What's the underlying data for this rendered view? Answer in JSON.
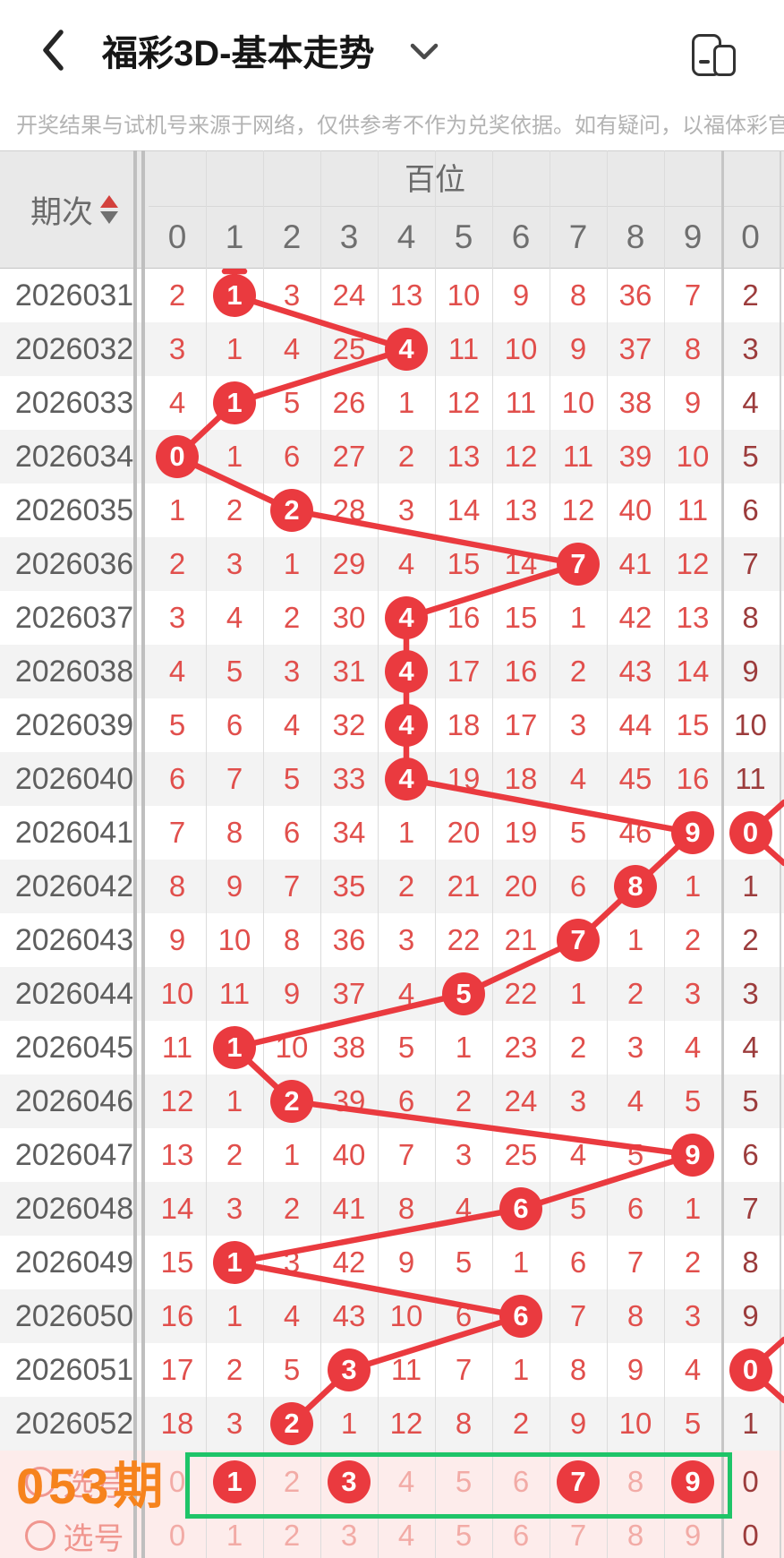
{
  "header": {
    "title": "福彩3D-基本走势",
    "back_icon": "chevron-left",
    "dropdown_icon": "chevron-down",
    "window_icon": "multi-window"
  },
  "disclaimer": "开奖结果与试机号来源于网络，仅供参考不作为兑奖依据。如有疑问，以福体彩官方数据",
  "table": {
    "period_header": "期次",
    "group_header": "百位",
    "digit_headers": [
      "0",
      "1",
      "2",
      "3",
      "4",
      "5",
      "6",
      "7",
      "8",
      "9"
    ],
    "next_group": {
      "digit_header": "0"
    },
    "rows": [
      {
        "period": "2026031",
        "cells": [
          "2",
          "1",
          "3",
          "24",
          "13",
          "10",
          "9",
          "8",
          "36",
          "7"
        ],
        "circled": 1,
        "next": "2",
        "next_circled": false
      },
      {
        "period": "2026032",
        "cells": [
          "3",
          "1",
          "4",
          "25",
          "4",
          "11",
          "10",
          "9",
          "37",
          "8"
        ],
        "circled": 4,
        "next": "3",
        "next_circled": false
      },
      {
        "period": "2026033",
        "cells": [
          "4",
          "1",
          "5",
          "26",
          "1",
          "12",
          "11",
          "10",
          "38",
          "9"
        ],
        "circled": 1,
        "next": "4",
        "next_circled": false
      },
      {
        "period": "2026034",
        "cells": [
          "0",
          "1",
          "6",
          "27",
          "2",
          "13",
          "12",
          "11",
          "39",
          "10"
        ],
        "circled": 0,
        "next": "5",
        "next_circled": false
      },
      {
        "period": "2026035",
        "cells": [
          "1",
          "2",
          "2",
          "28",
          "3",
          "14",
          "13",
          "12",
          "40",
          "11"
        ],
        "circled": 2,
        "next": "6",
        "next_circled": false
      },
      {
        "period": "2026036",
        "cells": [
          "2",
          "3",
          "1",
          "29",
          "4",
          "15",
          "14",
          "7",
          "41",
          "12"
        ],
        "circled": 7,
        "next": "7",
        "next_circled": false
      },
      {
        "period": "2026037",
        "cells": [
          "3",
          "4",
          "2",
          "30",
          "4",
          "16",
          "15",
          "1",
          "42",
          "13"
        ],
        "circled": 4,
        "next": "8",
        "next_circled": false
      },
      {
        "period": "2026038",
        "cells": [
          "4",
          "5",
          "3",
          "31",
          "4",
          "17",
          "16",
          "2",
          "43",
          "14"
        ],
        "circled": 4,
        "next": "9",
        "next_circled": false
      },
      {
        "period": "2026039",
        "cells": [
          "5",
          "6",
          "4",
          "32",
          "4",
          "18",
          "17",
          "3",
          "44",
          "15"
        ],
        "circled": 4,
        "next": "10",
        "next_circled": false
      },
      {
        "period": "2026040",
        "cells": [
          "6",
          "7",
          "5",
          "33",
          "4",
          "19",
          "18",
          "4",
          "45",
          "16"
        ],
        "circled": 4,
        "next": "11",
        "next_circled": false
      },
      {
        "period": "2026041",
        "cells": [
          "7",
          "8",
          "6",
          "34",
          "1",
          "20",
          "19",
          "5",
          "46",
          "9"
        ],
        "circled": 9,
        "next": "0",
        "next_circled": true
      },
      {
        "period": "2026042",
        "cells": [
          "8",
          "9",
          "7",
          "35",
          "2",
          "21",
          "20",
          "6",
          "8",
          "1"
        ],
        "circled": 8,
        "next": "1",
        "next_circled": false
      },
      {
        "period": "2026043",
        "cells": [
          "9",
          "10",
          "8",
          "36",
          "3",
          "22",
          "21",
          "7",
          "1",
          "2"
        ],
        "circled": 7,
        "next": "2",
        "next_circled": false
      },
      {
        "period": "2026044",
        "cells": [
          "10",
          "11",
          "9",
          "37",
          "4",
          "5",
          "22",
          "1",
          "2",
          "3"
        ],
        "circled": 5,
        "next": "3",
        "next_circled": false
      },
      {
        "period": "2026045",
        "cells": [
          "11",
          "1",
          "10",
          "38",
          "5",
          "1",
          "23",
          "2",
          "3",
          "4"
        ],
        "circled": 1,
        "next": "4",
        "next_circled": false
      },
      {
        "period": "2026046",
        "cells": [
          "12",
          "1",
          "2",
          "39",
          "6",
          "2",
          "24",
          "3",
          "4",
          "5"
        ],
        "circled": 2,
        "next": "5",
        "next_circled": false
      },
      {
        "period": "2026047",
        "cells": [
          "13",
          "2",
          "1",
          "40",
          "7",
          "3",
          "25",
          "4",
          "5",
          "9"
        ],
        "circled": 9,
        "next": "6",
        "next_circled": false
      },
      {
        "period": "2026048",
        "cells": [
          "14",
          "3",
          "2",
          "41",
          "8",
          "4",
          "6",
          "5",
          "6",
          "1"
        ],
        "circled": 6,
        "next": "7",
        "next_circled": false
      },
      {
        "period": "2026049",
        "cells": [
          "15",
          "1",
          "3",
          "42",
          "9",
          "5",
          "1",
          "6",
          "7",
          "2"
        ],
        "circled": 1,
        "next": "8",
        "next_circled": false
      },
      {
        "period": "2026050",
        "cells": [
          "16",
          "1",
          "4",
          "43",
          "10",
          "6",
          "6",
          "7",
          "8",
          "3"
        ],
        "circled": 6,
        "next": "9",
        "next_circled": false
      },
      {
        "period": "2026051",
        "cells": [
          "17",
          "2",
          "5",
          "3",
          "11",
          "7",
          "1",
          "8",
          "9",
          "4"
        ],
        "circled": 3,
        "next": "0",
        "next_circled": true
      },
      {
        "period": "2026052",
        "cells": [
          "18",
          "3",
          "2",
          "1",
          "12",
          "8",
          "2",
          "9",
          "10",
          "5"
        ],
        "circled": 2,
        "next": "1",
        "next_circled": false
      }
    ],
    "footer_rows": [
      {
        "label": "选号",
        "overlay": "053期",
        "cells": [
          "0",
          "1",
          "2",
          "3",
          "4",
          "5",
          "6",
          "7",
          "8",
          "9"
        ],
        "circled": [
          1,
          3,
          7,
          9
        ],
        "next": "0",
        "boxed": true
      },
      {
        "label": "选号",
        "cells": [
          "0",
          "1",
          "2",
          "3",
          "4",
          "5",
          "6",
          "7",
          "8",
          "9"
        ],
        "circled": [],
        "next": "0"
      }
    ]
  },
  "colors": {
    "trend_red": "#ea3a3f",
    "miss_red": "#e14f4c",
    "tens_dark_red": "#9c3c3c",
    "pink_text": "#f2aba6",
    "pink_bg": "#fdeceb",
    "orange_overlay": "#f6831d",
    "green_box": "#1fc468",
    "header_gray_bg": "#e9e9e9"
  }
}
